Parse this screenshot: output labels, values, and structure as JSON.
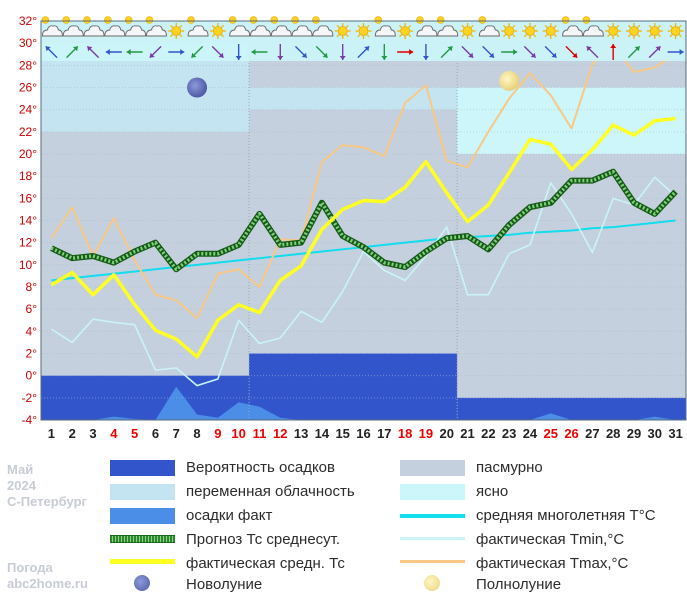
{
  "chart_data": {
    "type": "line",
    "title": "",
    "x": [
      1,
      2,
      3,
      4,
      5,
      6,
      7,
      8,
      9,
      10,
      11,
      12,
      13,
      14,
      15,
      16,
      17,
      18,
      19,
      20,
      21,
      22,
      23,
      24,
      25,
      26,
      27,
      28,
      29,
      30,
      31
    ],
    "x_ticks": [
      "1",
      "2",
      "3",
      "4",
      "5",
      "6",
      "7",
      "8",
      "9",
      "10",
      "11",
      "12",
      "13",
      "14",
      "15",
      "16",
      "17",
      "18",
      "19",
      "20",
      "21",
      "22",
      "23",
      "24",
      "25",
      "26",
      "27",
      "28",
      "29",
      "30",
      "31"
    ],
    "weekend_days": [
      4,
      5,
      9,
      10,
      11,
      12,
      18,
      19,
      25,
      26
    ],
    "y_ticks": [
      "-4",
      "-2",
      "0",
      "2",
      "4",
      "6",
      "8",
      "10",
      "12",
      "14",
      "16",
      "18",
      "20",
      "22",
      "24",
      "26",
      "28",
      "30",
      "32"
    ],
    "y_ticks_suffix": "°",
    "ylim": [
      -4,
      32
    ],
    "grid": true,
    "colors": {
      "precip_prob": "#3355cc",
      "overcast": "#c4d0de",
      "partly_cloudy": "#c4e4f2",
      "precip_fact": "#4a8ee8",
      "clear": "#ccf6fa",
      "climate_mean": "#11ddee",
      "forecast_mean": "#2a8a2a",
      "fact_tmin": "#c8f4f6",
      "fact_mean": "#ffff22",
      "fact_tmax": "#f8c884",
      "weekend_tick": "#ee0000",
      "weekday_tick": "#222222",
      "y_tick": "#cc0000"
    },
    "sky_bands": [
      {
        "from": 1,
        "to": 10,
        "top": 30,
        "kind": "partly_cloudy",
        "split": 22
      },
      {
        "from": 11,
        "to": 20,
        "top": 26,
        "kind": "partly_cloudy",
        "split": 24
      },
      {
        "from": 21,
        "to": 31,
        "top": 26,
        "kind": "clear",
        "split": 20
      }
    ],
    "precip_probability_bands": [
      {
        "from": 1,
        "to": 10,
        "top": 0
      },
      {
        "from": 11,
        "to": 20,
        "top": 2
      },
      {
        "from": 21,
        "to": 31,
        "top": -2
      }
    ],
    "series": [
      {
        "key": "precip_fact",
        "values": [
          -4,
          -4,
          -4,
          -3.7,
          -3.9,
          -4,
          -1,
          -3.5,
          -3.8,
          -2.4,
          -2.8,
          -3.8,
          -4,
          -4,
          -4,
          -4,
          -4,
          -4,
          -4,
          -4,
          -4,
          -4,
          -4,
          -4,
          -3.4,
          -4,
          -4,
          -4,
          -4,
          -3.7,
          -4
        ]
      },
      {
        "key": "climate_mean",
        "values": [
          8.6,
          8.8,
          9.0,
          9.2,
          9.4,
          9.6,
          9.8,
          10.0,
          10.2,
          10.4,
          10.6,
          10.8,
          11.0,
          11.2,
          11.4,
          11.6,
          11.8,
          12.0,
          12.2,
          12.4,
          12.5,
          12.6,
          12.7,
          12.9,
          13.0,
          13.1,
          13.3,
          13.4,
          13.6,
          13.8,
          14.0
        ]
      },
      {
        "key": "fact_tmin",
        "values": [
          4.2,
          3.0,
          5.1,
          4.8,
          4.6,
          0.5,
          0.7,
          -0.9,
          -0.3,
          5.0,
          2.9,
          3.4,
          5.8,
          4.8,
          7.6,
          11.2,
          9.5,
          8.6,
          10.8,
          13.4,
          7.3,
          7.3,
          11.0,
          11.8,
          17.4,
          14.6,
          11.1,
          16.0,
          15.4,
          17.9,
          16.2
        ]
      },
      {
        "key": "fact_tmax",
        "values": [
          12.4,
          15.2,
          10.8,
          14.2,
          10.4,
          7.3,
          6.8,
          5.2,
          9.2,
          9.6,
          8.0,
          12.3,
          12.2,
          19.3,
          20.8,
          20.6,
          19.8,
          24.6,
          26.2,
          19.4,
          18.8,
          22.0,
          25.0,
          27.3,
          25.3,
          22.3,
          28.1,
          29.8,
          27.4,
          27.8,
          29.0
        ]
      },
      {
        "key": "forecast_mean",
        "values": [
          11.5,
          10.6,
          10.8,
          10.2,
          11.2,
          12.0,
          9.6,
          11.0,
          11.0,
          11.8,
          14.6,
          11.8,
          12.0,
          15.6,
          12.6,
          11.6,
          10.2,
          9.8,
          11.2,
          12.4,
          12.6,
          11.4,
          13.6,
          15.2,
          15.6,
          17.6,
          17.6,
          18.4,
          15.6,
          14.6,
          16.6
        ]
      },
      {
        "key": "fact_mean",
        "values": [
          8.2,
          9.3,
          7.3,
          9.1,
          6.4,
          4.1,
          3.3,
          1.7,
          5.0,
          6.4,
          5.7,
          8.6,
          9.9,
          13.2,
          15.0,
          15.8,
          15.7,
          17.0,
          19.3,
          16.5,
          13.9,
          15.4,
          18.3,
          21.3,
          20.9,
          18.6,
          20.4,
          22.6,
          21.7,
          23.0,
          23.2
        ]
      }
    ],
    "moon_phases": [
      {
        "key": "new_moon",
        "day": 8,
        "y": 26
      },
      {
        "key": "full_moon",
        "day": 23,
        "y": 26.6
      }
    ],
    "weather_icons": [
      "cloud",
      "cloud",
      "cloud",
      "cloud",
      "cloud",
      "cloud",
      "sun",
      "cloud",
      "sun",
      "cloud",
      "cloud",
      "cloud",
      "cloud",
      "cloud",
      "sun",
      "sun",
      "cloud",
      "sun",
      "cloud",
      "cloud",
      "sun",
      "cloud",
      "sun",
      "sun",
      "sun",
      "cloud",
      "cloud",
      "sun",
      "sun",
      "sun",
      "sun"
    ],
    "wind_arrows": [
      [
        -1,
        -1
      ],
      [
        1,
        -1
      ],
      [
        -1,
        -1
      ],
      [
        -1,
        0
      ],
      [
        -1,
        0
      ],
      [
        -1,
        1
      ],
      [
        1,
        0
      ],
      [
        -1,
        1
      ],
      [
        1,
        1
      ],
      [
        0,
        1
      ],
      [
        -1,
        0
      ],
      [
        0,
        1
      ],
      [
        1,
        1
      ],
      [
        1,
        1
      ],
      [
        0,
        1
      ],
      [
        1,
        -1
      ],
      [
        0,
        1
      ],
      [
        1,
        0
      ],
      [
        0,
        1
      ],
      [
        1,
        -1
      ],
      [
        1,
        1
      ],
      [
        1,
        1
      ],
      [
        1,
        0
      ],
      [
        1,
        1
      ],
      [
        1,
        1
      ],
      [
        1,
        1
      ],
      [
        -1,
        -1
      ],
      [
        0,
        -1
      ],
      [
        1,
        -1
      ],
      [
        1,
        -1
      ],
      [
        1,
        0
      ]
    ],
    "wind_arrow_color_red_days": [
      18,
      26,
      28
    ]
  },
  "legend": [
    {
      "key": "precip_prob",
      "label": "Вероятность осадков"
    },
    {
      "key": "overcast",
      "label": "пасмурно"
    },
    {
      "key": "partly_cloudy",
      "label": "переменная облачность"
    },
    {
      "key": "clear",
      "label": "ясно"
    },
    {
      "key": "precip_fact",
      "label": "осадки факт"
    },
    {
      "key": "climate_mean",
      "label": "средняя многолетняя T°C"
    },
    {
      "key": "forecast_mean",
      "label": "Прогноз Тс среднесут."
    },
    {
      "key": "fact_tmin",
      "label": "фактическая Tmin,°C"
    },
    {
      "key": "fact_mean",
      "label": "фактическая средн. Тс"
    },
    {
      "key": "fact_tmax",
      "label": "фактическая Tmax,°C"
    },
    {
      "key": "new_moon",
      "label": "Новолуние"
    },
    {
      "key": "full_moon",
      "label": "Полнолуние"
    }
  ],
  "caption": {
    "month": "Май",
    "year": "2024",
    "city": "С-Петербург",
    "site_line1": "Погода",
    "site_line2": "abc2home.ru"
  }
}
